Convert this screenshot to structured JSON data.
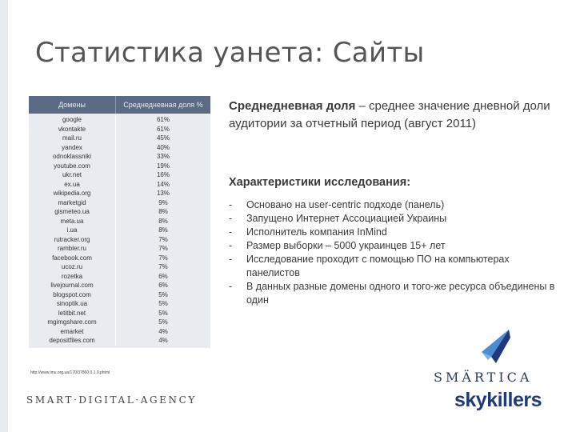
{
  "slide": {
    "title": "Статистика уанета: Сайты"
  },
  "table": {
    "headers": [
      "Домены",
      "Среднедневная доля %"
    ],
    "rows": [
      {
        "domain": "google",
        "share": "61%"
      },
      {
        "domain": "vkontakte",
        "share": "61%"
      },
      {
        "domain": "mail.ru",
        "share": "45%"
      },
      {
        "domain": "yandex",
        "share": "40%"
      },
      {
        "domain": "odnoklassniki",
        "share": "33%"
      },
      {
        "domain": "youtube.com",
        "share": "19%"
      },
      {
        "domain": "ukr.net",
        "share": "16%"
      },
      {
        "domain": "ex.ua",
        "share": "14%"
      },
      {
        "domain": "wikipedia.org",
        "share": "13%"
      },
      {
        "domain": "marketgid",
        "share": "9%"
      },
      {
        "domain": "gismeteo.ua",
        "share": "8%"
      },
      {
        "domain": "meta.ua",
        "share": "8%"
      },
      {
        "domain": "i.ua",
        "share": "8%"
      },
      {
        "domain": "rutracker.org",
        "share": "7%"
      },
      {
        "domain": "rambler.ru",
        "share": "7%"
      },
      {
        "domain": "facebook.com",
        "share": "7%"
      },
      {
        "domain": "ucoz.ru",
        "share": "7%"
      },
      {
        "domain": "rozetka",
        "share": "6%"
      },
      {
        "domain": "livejournal.com",
        "share": "6%"
      },
      {
        "domain": "blogspot.com",
        "share": "5%"
      },
      {
        "domain": "sinoptik.ua",
        "share": "5%"
      },
      {
        "domain": "letitbit.net",
        "share": "5%"
      },
      {
        "domain": "mgimgshare.com",
        "share": "5%"
      },
      {
        "domain": "emarket",
        "share": "4%"
      },
      {
        "domain": "depositfiles.com",
        "share": "4%"
      }
    ],
    "source": "http://www.imu.org.ua/170/37860.0.1.0.phtml"
  },
  "definition": {
    "term": "Среднедневная доля",
    "text": " – среднее значение дневной доли аудитории за отчетный период (август 2011)"
  },
  "characteristics": {
    "title": "Характеристики исследования:",
    "items": [
      "Основано на user-centric подходе (панель)",
      "Запущено Интернет Ассоциацией Украины",
      "Исполнитель компания InMind",
      "Размер выборки – 5000 украинцев 15+ лет",
      "Исследование проходит с помощью ПО на компьютерах панелистов",
      "В данных разные домены одного и того-же ресурса объединены в один"
    ]
  },
  "footer": {
    "agency": "SMART·DIGITAL·AGENCY"
  },
  "logo": {
    "top": "SMÄRTICA",
    "bottom": "skykillers",
    "color": "#1f3a7a"
  }
}
